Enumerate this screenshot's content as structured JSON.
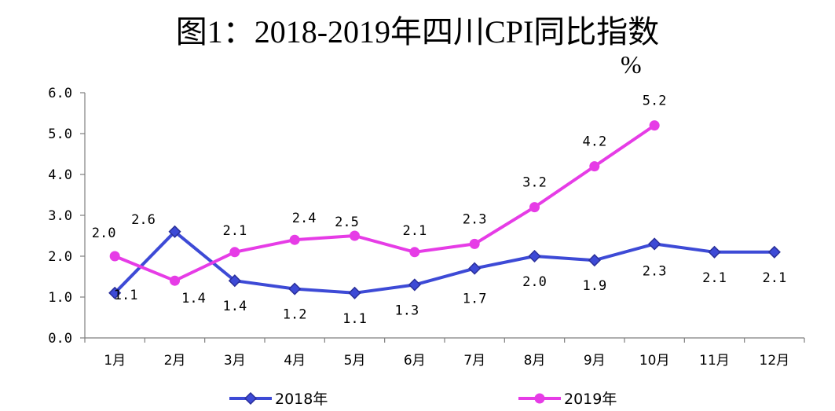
{
  "chart_data": {
    "type": "line",
    "title": "图1：2018-2019年四川CPI同比指数",
    "unit": "%",
    "categories": [
      "1月",
      "2月",
      "3月",
      "4月",
      "5月",
      "6月",
      "7月",
      "8月",
      "9月",
      "10月",
      "11月",
      "12月"
    ],
    "ylim": [
      0,
      6
    ],
    "yticks": [
      "0.0",
      "1.0",
      "2.0",
      "3.0",
      "4.0",
      "5.0",
      "6.0"
    ],
    "grid": false,
    "legend_position": "bottom",
    "series": [
      {
        "name": "2018年",
        "color": "#3d4ad6",
        "marker": "diamond",
        "values": [
          1.1,
          2.6,
          1.4,
          1.2,
          1.1,
          1.3,
          1.7,
          2.0,
          1.9,
          2.3,
          2.1,
          2.1
        ],
        "labels": [
          "1.1",
          "2.6",
          "1.4",
          "1.2",
          "1.1",
          "1.3",
          "1.7",
          "2.0",
          "1.9",
          "2.3",
          "2.1",
          "2.1"
        ]
      },
      {
        "name": "2019年",
        "color": "#e63ce6",
        "marker": "circle",
        "values": [
          2.0,
          1.4,
          2.1,
          2.4,
          2.5,
          2.1,
          2.3,
          3.2,
          4.2,
          5.2,
          null,
          null
        ],
        "labels": [
          "2.0",
          "1.4",
          "2.1",
          "2.4",
          "2.5",
          "2.1",
          "2.3",
          "3.2",
          "4.2",
          "5.2",
          null,
          null
        ]
      }
    ]
  }
}
